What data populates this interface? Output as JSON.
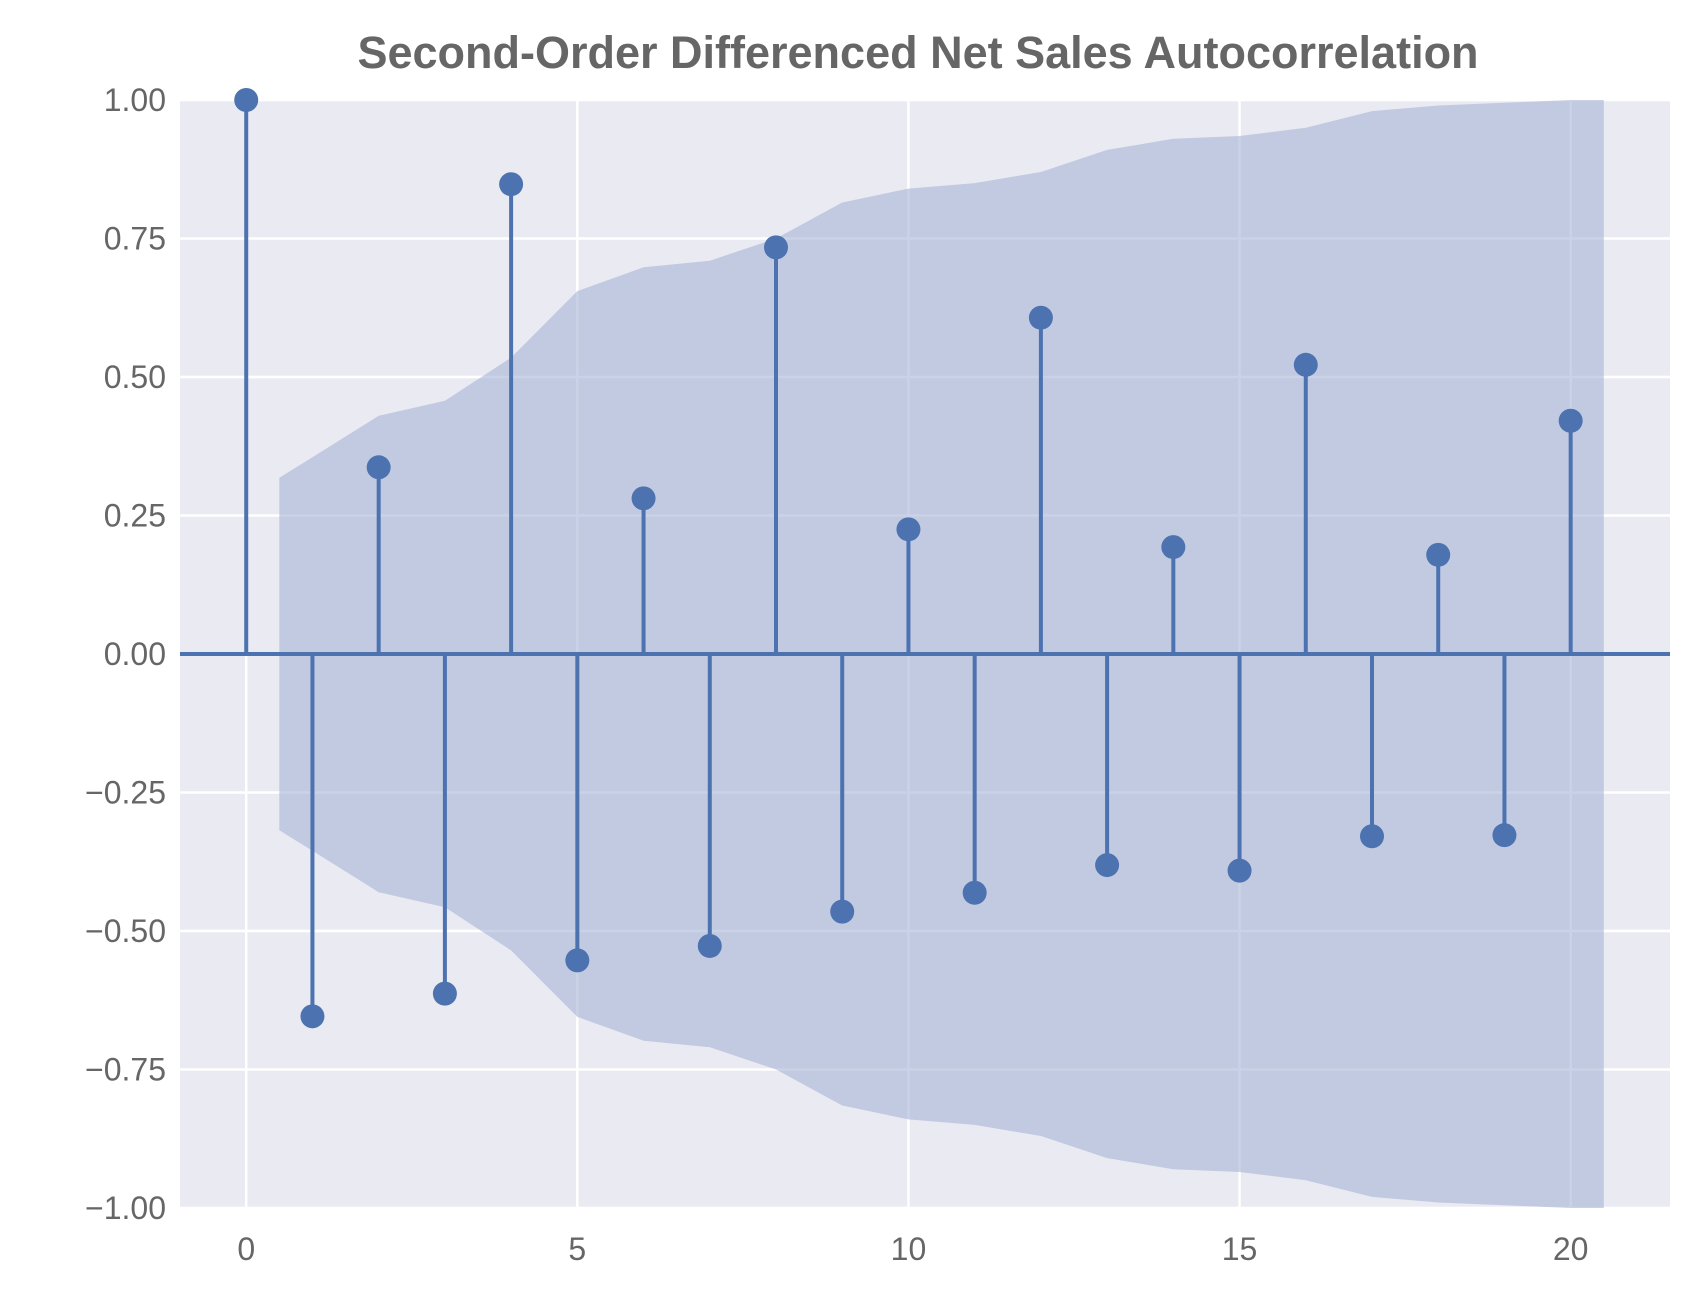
{
  "chart_data": {
    "type": "stem",
    "title": "Second-Order Differenced Net Sales Autocorrelation",
    "xlabel": "",
    "ylabel": "",
    "xlim": [
      -1,
      21.5
    ],
    "ylim": [
      -1.0,
      1.0
    ],
    "x_ticks": [
      0,
      5,
      10,
      15,
      20
    ],
    "x_tick_labels": [
      "0",
      "5",
      "10",
      "15",
      "20"
    ],
    "y_ticks": [
      1.0,
      0.75,
      0.5,
      0.25,
      0.0,
      -0.25,
      -0.5,
      -0.75,
      -1.0
    ],
    "y_tick_labels": [
      "1.00",
      "0.75",
      "0.50",
      "0.25",
      "0.00",
      "−0.25",
      "−0.50",
      "−0.75",
      "−1.00"
    ],
    "grid": true,
    "lags": [
      0,
      1,
      2,
      3,
      4,
      5,
      6,
      7,
      8,
      9,
      10,
      11,
      12,
      13,
      14,
      15,
      16,
      17,
      18,
      19,
      20
    ],
    "values": [
      1.0,
      -0.654,
      0.337,
      -0.613,
      0.848,
      -0.553,
      0.281,
      -0.527,
      0.734,
      -0.465,
      0.225,
      -0.431,
      0.607,
      -0.381,
      0.193,
      -0.391,
      0.522,
      -0.329,
      0.179,
      -0.327,
      0.421
    ],
    "confidence_band": {
      "x": [
        0.5,
        1,
        2,
        3,
        4,
        5,
        6,
        7,
        8,
        9,
        10,
        11,
        12,
        13,
        14,
        15,
        16,
        17,
        18,
        19,
        20,
        20.5
      ],
      "upper": [
        0.318,
        0.355,
        0.43,
        0.457,
        0.535,
        0.655,
        0.698,
        0.71,
        0.75,
        0.815,
        0.84,
        0.85,
        0.87,
        0.91,
        0.93,
        0.935,
        0.95,
        0.98,
        0.99,
        0.995,
        1.0,
        1.0
      ]
    },
    "colors": {
      "stem": "#4c72b0",
      "band": "#a6b4d7",
      "background": "#eaeaf2",
      "grid": "#ffffff",
      "text": "#666666"
    }
  }
}
